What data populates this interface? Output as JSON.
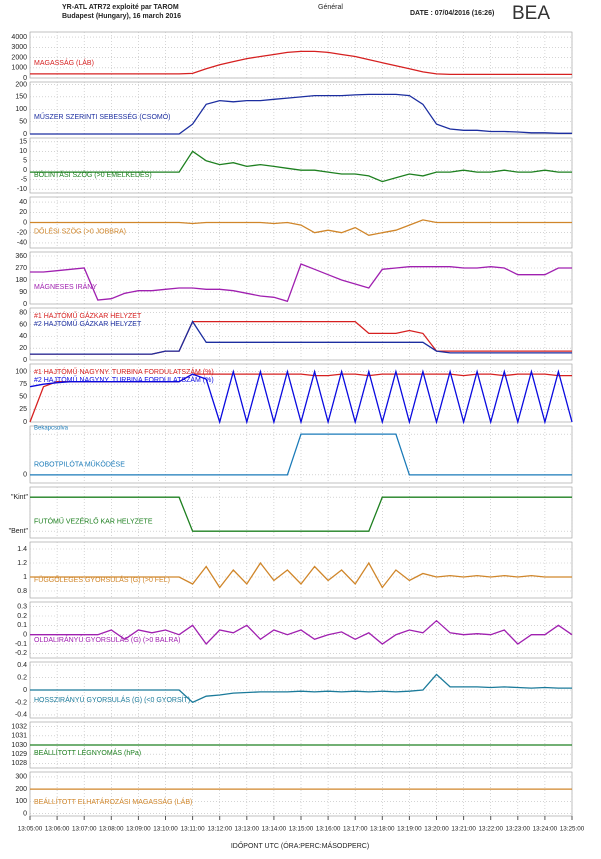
{
  "chart_data": {
    "type": "line",
    "header": {
      "title": "YR-ATL ATR72 exploité par TAROM",
      "subtitle": "Budapest (Hungary), 16 march 2016",
      "section": "Général",
      "date": "DATE : 07/04/2016 (16:26)",
      "logo": "BEA"
    },
    "xlabel": "IDŐPONT UTC (ÓRA:PERC:MÁSODPERC)",
    "xlim": [
      "13:05:00",
      "13:25:00"
    ],
    "xticks": [
      "13:05:00",
      "13:06:00",
      "13:07:00",
      "13:08:00",
      "13:09:00",
      "13:10:00",
      "13:11:00",
      "13:12:00",
      "13:13:00",
      "13:14:00",
      "13:15:00",
      "13:16:00",
      "13:17:00",
      "13:18:00",
      "13:19:00",
      "13:20:00",
      "13:21:00",
      "13:22:00",
      "13:23:00",
      "13:24:00",
      "13:25:00"
    ],
    "grid": true,
    "x": [
      "13:05:00",
      "13:05:30",
      "13:06:00",
      "13:06:30",
      "13:07:00",
      "13:07:30",
      "13:08:00",
      "13:08:30",
      "13:09:00",
      "13:09:30",
      "13:10:00",
      "13:10:30",
      "13:11:00",
      "13:11:30",
      "13:12:00",
      "13:12:30",
      "13:13:00",
      "13:13:30",
      "13:14:00",
      "13:14:30",
      "13:15:00",
      "13:15:30",
      "13:16:00",
      "13:16:30",
      "13:17:00",
      "13:17:30",
      "13:18:00",
      "13:18:30",
      "13:19:00",
      "13:19:30",
      "13:20:00",
      "13:20:30",
      "13:21:00",
      "13:21:30",
      "13:22:00",
      "13:22:30",
      "13:23:00",
      "13:23:30",
      "13:24:00",
      "13:24:30",
      "13:25:00"
    ],
    "panels": [
      {
        "ylim": [
          0,
          4500
        ],
        "yticks": [
          0,
          1000,
          2000,
          3000,
          4000
        ],
        "series": [
          {
            "name": "MAGASSÁG (LÁB)",
            "color": "#d62020",
            "values": [
              400,
              400,
              400,
              400,
              400,
              400,
              400,
              400,
              400,
              400,
              400,
              400,
              450,
              900,
              1300,
              1600,
              1900,
              2100,
              2300,
              2500,
              2600,
              2600,
              2500,
              2300,
              2100,
              1800,
              1500,
              1200,
              900,
              600,
              400,
              350,
              350,
              350,
              350,
              350,
              350,
              350,
              350,
              350,
              350
            ]
          }
        ]
      },
      {
        "ylim": [
          0,
          210
        ],
        "yticks": [
          0,
          50,
          100,
          150,
          200
        ],
        "series": [
          {
            "name": "MŰSZER SZERINTI SEBESSÉG (CSOMÓ)",
            "color": "#1c2ea0",
            "values": [
              0,
              0,
              0,
              0,
              0,
              0,
              0,
              0,
              0,
              0,
              0,
              0,
              40,
              120,
              135,
              130,
              135,
              135,
              140,
              145,
              150,
              155,
              155,
              155,
              158,
              160,
              160,
              160,
              155,
              120,
              40,
              20,
              15,
              15,
              10,
              10,
              8,
              5,
              5,
              3,
              3
            ]
          }
        ]
      },
      {
        "ylim": [
          -12,
          17
        ],
        "yticks": [
          -10,
          -5,
          0,
          5,
          10,
          15
        ],
        "series": [
          {
            "name": "BÓLINTÁSI SZÖG (>0 EMELKEDÉS)",
            "color": "#1e8020",
            "values": [
              -1,
              -1,
              -1,
              -1,
              -1,
              -1,
              -1,
              -1,
              -1,
              -1,
              -1,
              -1,
              10,
              5,
              3,
              4,
              2,
              3,
              2,
              1,
              0,
              0,
              -1,
              -2,
              -2,
              -3,
              -6,
              -4,
              -2,
              -3,
              -1,
              -1,
              0,
              -1,
              -1,
              0,
              -1,
              -1,
              0,
              -1,
              -1
            ]
          }
        ]
      },
      {
        "ylim": [
          -50,
          50
        ],
        "yticks": [
          -40,
          -20,
          0,
          20,
          40
        ],
        "series": [
          {
            "name": "DŐLÉSI SZÖG (>0 JOBBRA)",
            "color": "#d0862a",
            "values": [
              0,
              0,
              0,
              0,
              0,
              0,
              0,
              0,
              0,
              0,
              0,
              0,
              -2,
              0,
              0,
              0,
              0,
              0,
              -2,
              0,
              -5,
              -20,
              -15,
              -20,
              -10,
              -25,
              -20,
              -15,
              -5,
              5,
              0,
              0,
              0,
              0,
              0,
              0,
              0,
              0,
              0,
              0,
              0
            ]
          }
        ]
      },
      {
        "ylim": [
          0,
          390
        ],
        "yticks": [
          0,
          90,
          180,
          270,
          360
        ],
        "series": [
          {
            "name": "MÁGNESES IRÁNY",
            "color": "#a020b0",
            "values": [
              240,
              240,
              250,
              260,
              270,
              30,
              40,
              80,
              100,
              100,
              110,
              120,
              120,
              110,
              110,
              100,
              80,
              60,
              50,
              20,
              300,
              260,
              220,
              180,
              150,
              120,
              260,
              270,
              280,
              280,
              280,
              280,
              270,
              270,
              280,
              270,
              220,
              220,
              220,
              270,
              270
            ]
          }
        ]
      },
      {
        "ylim": [
          0,
          88
        ],
        "yticks": [
          0,
          20,
          40,
          60,
          80
        ],
        "series": [
          {
            "name": "#1 HAJTÓMŰ GÁZKAR HELYZET",
            "color": "#d62020",
            "values": [
              10,
              10,
              10,
              10,
              10,
              10,
              10,
              10,
              10,
              10,
              15,
              15,
              65,
              65,
              65,
              65,
              65,
              65,
              65,
              65,
              65,
              65,
              65,
              65,
              65,
              45,
              45,
              45,
              50,
              45,
              15,
              15,
              15,
              15,
              15,
              15,
              15,
              15,
              15,
              15,
              15
            ]
          },
          {
            "name": "#2 HAJTÓMŰ GÁZKAR HELYZET",
            "color": "#1c2ea0",
            "values": [
              10,
              10,
              10,
              10,
              10,
              10,
              10,
              10,
              10,
              10,
              15,
              15,
              65,
              30,
              30,
              30,
              30,
              30,
              30,
              30,
              30,
              30,
              30,
              30,
              30,
              30,
              30,
              30,
              30,
              30,
              15,
              12,
              12,
              12,
              12,
              12,
              12,
              12,
              12,
              12,
              12
            ]
          }
        ]
      },
      {
        "ylim": [
          0,
          115
        ],
        "yticks": [
          0,
          25,
          50,
          75,
          100
        ],
        "series": [
          {
            "name": "#1 HAJTÓMŰ NAGYNY. TURBINA FORDULATSZÁM (%)",
            "color": "#d62020",
            "values": [
              0,
              70,
              80,
              80,
              80,
              80,
              80,
              80,
              80,
              80,
              80,
              80,
              95,
              95,
              95,
              95,
              95,
              95,
              95,
              95,
              95,
              92,
              92,
              95,
              95,
              92,
              95,
              95,
              95,
              95,
              95,
              95,
              92,
              95,
              95,
              92,
              95,
              95,
              95,
              92,
              92
            ]
          },
          {
            "name": "#2 HAJTÓMŰ NAGYNY. TURBINA FORDULATSZÁM (%)",
            "color": "#0a0ae0",
            "values": [
              70,
              75,
              78,
              80,
              80,
              80,
              80,
              80,
              80,
              80,
              80,
              80,
              95,
              85,
              0,
              100,
              0,
              100,
              0,
              100,
              0,
              100,
              0,
              100,
              0,
              100,
              0,
              100,
              0,
              100,
              0,
              100,
              0,
              100,
              0,
              100,
              0,
              100,
              0,
              100,
              0
            ]
          }
        ]
      },
      {
        "ylim": [
          -0.2,
          1.2
        ],
        "yticks": [
          0,
          {
            "value": 1,
            "label": "Bekapcsolva"
          }
        ],
        "series": [
          {
            "name": "ROBOTPILÓTA MŰKÖDÉSE",
            "color": "#1a7ab8",
            "values": [
              0,
              0,
              0,
              0,
              0,
              0,
              0,
              0,
              0,
              0,
              0,
              0,
              0,
              0,
              0,
              0,
              0,
              0,
              0,
              0,
              1,
              1,
              1,
              1,
              1,
              1,
              1,
              1,
              0,
              0,
              0,
              0,
              0,
              0,
              0,
              0,
              0,
              0,
              0,
              0,
              0
            ]
          }
        ]
      },
      {
        "ylim": [
          -0.2,
          1.3
        ],
        "yticks": [
          {
            "value": 0,
            "label": "\"Bent\""
          },
          {
            "value": 1,
            "label": "\"Kint\""
          }
        ],
        "series": [
          {
            "name": "FUTÓMŰ VEZÉRLŐ KAR HELYZETE",
            "color": "#1e8020",
            "values": [
              1,
              1,
              1,
              1,
              1,
              1,
              1,
              1,
              1,
              1,
              1,
              1,
              0,
              0,
              0,
              0,
              0,
              0,
              0,
              0,
              0,
              0,
              0,
              0,
              0,
              0,
              1,
              1,
              1,
              1,
              1,
              1,
              1,
              1,
              1,
              1,
              1,
              1,
              1,
              1,
              1
            ]
          }
        ]
      },
      {
        "ylim": [
          0.7,
          1.5
        ],
        "yticks": [
          0.8,
          1,
          1.2,
          1.4
        ],
        "series": [
          {
            "name": "FÜGGŐLEGES GYORSULÁS (G) (>0 FEL)",
            "color": "#d0862a",
            "values": [
              1,
              1,
              1,
              1,
              1,
              1,
              1,
              1,
              1,
              1,
              1,
              1,
              0.9,
              1.15,
              0.85,
              1.1,
              0.9,
              1.2,
              0.95,
              1.1,
              0.9,
              1.15,
              0.95,
              1.1,
              0.9,
              1.2,
              0.85,
              1.1,
              0.95,
              1.05,
              1,
              1.02,
              1,
              1.02,
              1,
              1.02,
              1,
              1.02,
              1,
              1,
              1
            ]
          }
        ]
      },
      {
        "ylim": [
          -0.25,
          0.35
        ],
        "yticks": [
          -0.2,
          -0.1,
          0,
          0.1,
          0.2,
          0.3
        ],
        "series": [
          {
            "name": "OLDALIRÁNYÚ GYORSULÁS (G) (>0 BALRA)",
            "color": "#a020b0",
            "values": [
              0,
              0,
              0,
              0,
              0,
              0,
              0.05,
              -0.05,
              0.05,
              0.02,
              0.05,
              0,
              0.1,
              -0.1,
              0.05,
              0.02,
              0.1,
              -0.05,
              0.05,
              0,
              0.05,
              -0.05,
              0,
              0.03,
              -0.05,
              0.02,
              -0.1,
              0,
              0.05,
              0.02,
              0.15,
              0.02,
              0,
              0.01,
              0,
              0.05,
              -0.1,
              0,
              0,
              0.1,
              0
            ]
          }
        ]
      },
      {
        "ylim": [
          -0.45,
          0.45
        ],
        "yticks": [
          -0.4,
          -0.2,
          0,
          0.2,
          0.4
        ],
        "series": [
          {
            "name": "HOSSZIRÁNYÚ GYORSULÁS (G) (<0 GYORSÍT)",
            "color": "#1a7a9a",
            "values": [
              0,
              0,
              0,
              0,
              0,
              0,
              0,
              0,
              0,
              0,
              0,
              0,
              -0.2,
              -0.1,
              -0.08,
              -0.05,
              -0.04,
              -0.03,
              -0.03,
              -0.03,
              -0.02,
              -0.03,
              -0.02,
              -0.03,
              -0.02,
              -0.03,
              -0.02,
              -0.03,
              -0.02,
              0,
              0.25,
              0.05,
              0.05,
              0.05,
              0.04,
              0.05,
              0.04,
              0.03,
              0.04,
              0.03,
              0.03
            ]
          }
        ]
      },
      {
        "ylim": [
          1027.5,
          1032.5
        ],
        "yticks": [
          1028,
          1029,
          1030,
          1031,
          1032
        ],
        "series": [
          {
            "name": "BEÁLLÍTOTT LÉGNYOMÁS (hPa)",
            "color": "#1e8020",
            "values": [
              1030,
              1030,
              1030,
              1030,
              1030,
              1030,
              1030,
              1030,
              1030,
              1030,
              1030,
              1030,
              1030,
              1030,
              1030,
              1030,
              1030,
              1030,
              1030,
              1030,
              1030,
              1030,
              1030,
              1030,
              1030,
              1030,
              1030,
              1030,
              1030,
              1030,
              1030,
              1030,
              1030,
              1030,
              1030,
              1030,
              1030,
              1030,
              1030,
              1030,
              1030
            ]
          }
        ]
      },
      {
        "ylim": [
          -20,
          340
        ],
        "yticks": [
          0,
          100,
          200,
          300
        ],
        "series": [
          {
            "name": "BEÁLLÍTOTT ELHATÁROZÁSI MAGASSÁG (LÁB)",
            "color": "#d0862a",
            "values": [
              200,
              200,
              200,
              200,
              200,
              200,
              200,
              200,
              200,
              200,
              200,
              200,
              200,
              200,
              200,
              200,
              200,
              200,
              200,
              200,
              200,
              200,
              200,
              200,
              200,
              200,
              200,
              200,
              200,
              200,
              200,
              200,
              200,
              200,
              200,
              200,
              200,
              200,
              200,
              200,
              200
            ]
          }
        ]
      }
    ]
  }
}
